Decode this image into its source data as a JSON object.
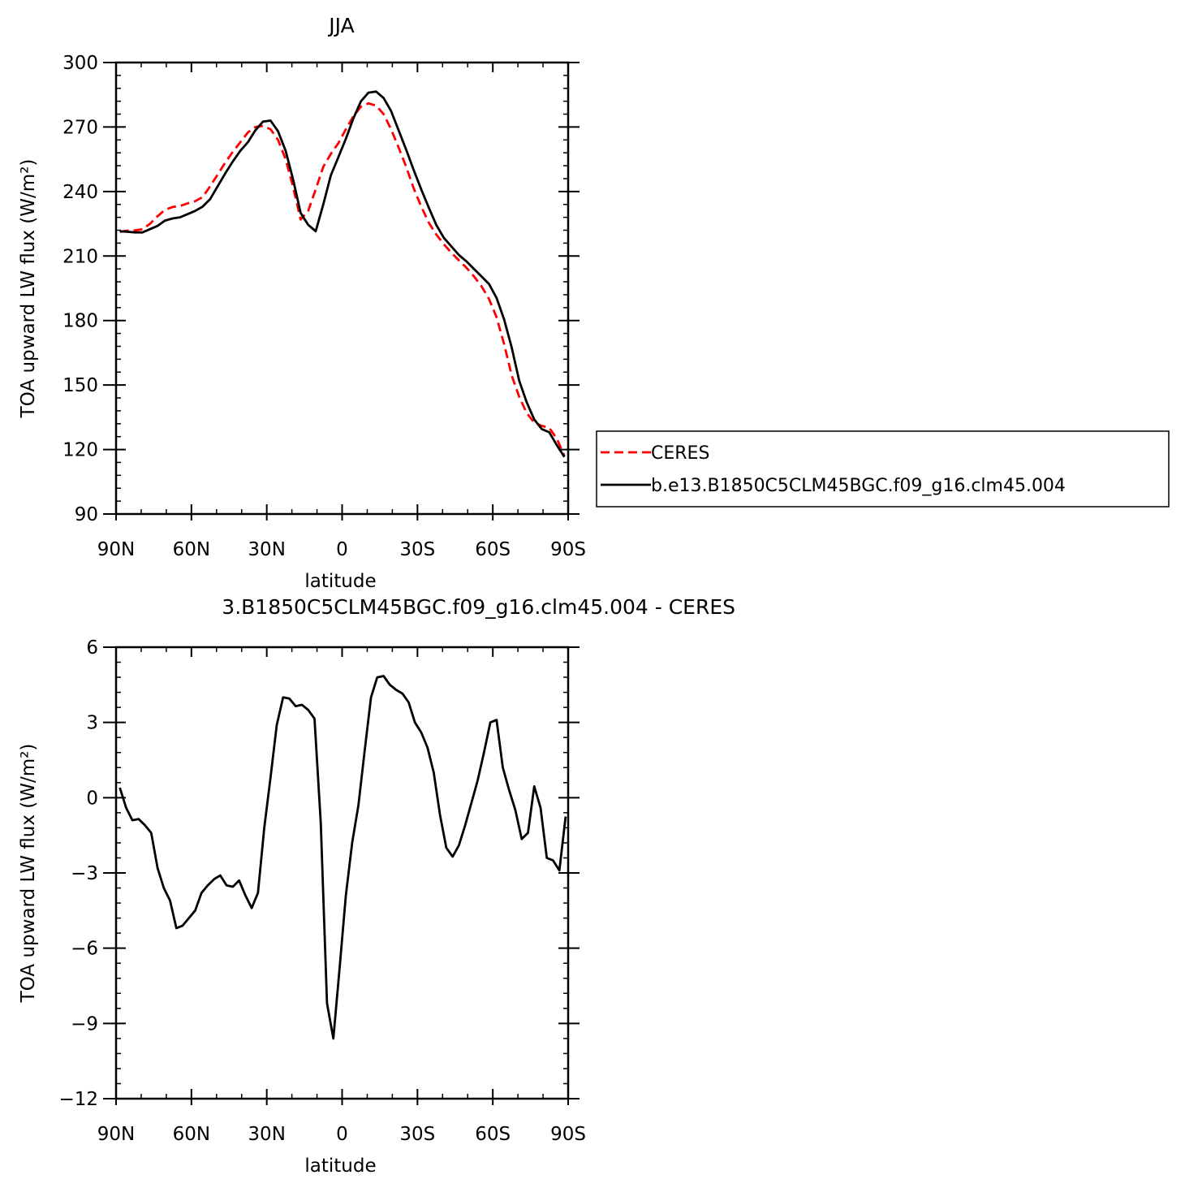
{
  "chart_data": [
    {
      "type": "line",
      "title": "JJA",
      "xlabel": "latitude",
      "ylabel": "TOA upward LW flux (W/m²)",
      "xlim": [
        90,
        -90
      ],
      "ylim": [
        90,
        300
      ],
      "x_ticks": [
        {
          "value": 90,
          "label": "90N"
        },
        {
          "value": 60,
          "label": "60N"
        },
        {
          "value": 30,
          "label": "30N"
        },
        {
          "value": 0,
          "label": "0"
        },
        {
          "value": -30,
          "label": "30S"
        },
        {
          "value": -60,
          "label": "60S"
        },
        {
          "value": -90,
          "label": "90S"
        }
      ],
      "y_ticks": [
        90,
        120,
        150,
        180,
        210,
        240,
        270,
        300
      ],
      "legend_position": "right",
      "series": [
        {
          "name": "CERES",
          "color": "#ff0000",
          "dash": "dashed",
          "x": [
            88.5,
            85.5,
            82.5,
            79.5,
            76.5,
            73.5,
            70.5,
            67.5,
            64.5,
            61.5,
            58.5,
            55.5,
            52.5,
            49.5,
            46.5,
            43.5,
            40.5,
            37.5,
            34.5,
            31.5,
            28.5,
            25.5,
            22.5,
            19.5,
            16.5,
            13.5,
            10.5,
            7.5,
            4.5,
            1.5,
            -1.5,
            -4.5,
            -7.5,
            -10.5,
            -13.5,
            -16.5,
            -19.5,
            -22.5,
            -25.5,
            -28.5,
            -31.5,
            -34.5,
            -37.5,
            -40.5,
            -43.5,
            -46.5,
            -49.5,
            -52.5,
            -55.5,
            -58.5,
            -61.5,
            -64.5,
            -67.5,
            -70.5,
            -73.5,
            -76.5,
            -79.5,
            -82.5,
            -85.5,
            -88.5
          ],
          "y": [
            221.3,
            221.8,
            221.9,
            222.5,
            225.0,
            228.5,
            231.5,
            232.8,
            233.3,
            234.5,
            235.5,
            237.5,
            242.5,
            248.0,
            253.5,
            258.5,
            263.0,
            267.5,
            270.0,
            270.5,
            269.0,
            264.0,
            255.0,
            242.0,
            227.0,
            231.0,
            241.0,
            251.5,
            257.5,
            262.5,
            269.0,
            275.0,
            279.5,
            281.0,
            280.0,
            276.0,
            269.0,
            260.5,
            251.5,
            241.5,
            233.0,
            225.5,
            220.0,
            215.5,
            211.5,
            208.0,
            204.5,
            200.5,
            196.0,
            190.0,
            181.5,
            169.0,
            154.5,
            144.5,
            137.0,
            132.5,
            131.0,
            130.0,
            125.0,
            117.0
          ]
        },
        {
          "name": "b.e13.B1850C5CLM45BGC.f09_g16.clm45.004",
          "color": "#000000",
          "dash": "solid",
          "x": [
            88.5,
            85.5,
            82.5,
            79.5,
            76.5,
            73.5,
            70.5,
            67.5,
            64.5,
            61.5,
            58.5,
            55.5,
            52.5,
            49.5,
            46.5,
            43.5,
            40.5,
            37.5,
            34.5,
            31.5,
            28.5,
            25.5,
            22.5,
            19.5,
            16.5,
            13.5,
            10.5,
            7.5,
            4.5,
            1.5,
            -1.5,
            -4.5,
            -7.5,
            -10.5,
            -13.5,
            -16.5,
            -19.5,
            -22.5,
            -25.5,
            -28.5,
            -31.5,
            -34.5,
            -37.5,
            -40.5,
            -43.5,
            -46.5,
            -49.5,
            -52.5,
            -55.5,
            -58.5,
            -61.5,
            -64.5,
            -67.5,
            -70.5,
            -73.5,
            -76.5,
            -79.5,
            -82.5,
            -85.5,
            -88.5
          ],
          "y": [
            221.5,
            221.3,
            221.0,
            221.0,
            222.5,
            224.0,
            226.5,
            227.5,
            228.0,
            229.5,
            231.0,
            233.0,
            236.5,
            242.5,
            248.5,
            254.0,
            259.0,
            263.0,
            268.5,
            272.5,
            273.0,
            268.0,
            259.0,
            245.5,
            230.0,
            224.5,
            221.5,
            234.0,
            247.5,
            256.0,
            264.5,
            274.0,
            282.0,
            286.0,
            286.5,
            283.5,
            277.5,
            268.5,
            259.5,
            250.0,
            241.0,
            232.5,
            224.5,
            218.5,
            214.5,
            210.5,
            207.5,
            204.0,
            200.5,
            197.0,
            190.5,
            180.5,
            167.5,
            152.0,
            142.0,
            134.0,
            129.5,
            128.0,
            122.0,
            116.5
          ]
        }
      ]
    },
    {
      "type": "line",
      "title": "3.B1850C5CLM45BGC.f09_g16.clm45.004 - CERES",
      "xlabel": "latitude",
      "ylabel": "TOA upward LW flux (W/m²)",
      "xlim": [
        90,
        -90
      ],
      "ylim": [
        -12,
        6
      ],
      "x_ticks": [
        {
          "value": 90,
          "label": "90N"
        },
        {
          "value": 60,
          "label": "60N"
        },
        {
          "value": 30,
          "label": "30N"
        },
        {
          "value": 0,
          "label": "0"
        },
        {
          "value": -30,
          "label": "30S"
        },
        {
          "value": -60,
          "label": "60S"
        },
        {
          "value": -90,
          "label": "90S"
        }
      ],
      "y_ticks": [
        -12,
        -9,
        -6,
        -3,
        0,
        3,
        6
      ],
      "series": [
        {
          "color": "#000000",
          "dash": "solid",
          "x": [
            88.5,
            86.0,
            83.5,
            81.0,
            78.5,
            76.0,
            73.5,
            71.0,
            68.5,
            66.0,
            63.5,
            61.0,
            58.5,
            56.0,
            53.5,
            51.0,
            48.5,
            46.0,
            43.5,
            41.0,
            38.5,
            36.0,
            33.5,
            31.0,
            28.5,
            26.0,
            23.5,
            21.0,
            18.5,
            16.0,
            13.5,
            11.0,
            8.5,
            6.0,
            3.5,
            1.0,
            -1.5,
            -4.0,
            -6.5,
            -9.0,
            -11.5,
            -14.0,
            -16.5,
            -19.0,
            -21.5,
            -24.0,
            -26.5,
            -29.0,
            -31.5,
            -34.0,
            -36.5,
            -39.0,
            -41.5,
            -44.0,
            -46.5,
            -49.0,
            -51.5,
            -54.0,
            -56.5,
            -59.0,
            -61.5,
            -64.0,
            -66.5,
            -69.0,
            -71.5,
            -74.0,
            -76.5,
            -79.0,
            -81.5,
            -84.0,
            -86.5,
            -89.0
          ],
          "y": [
            0.4,
            -0.4,
            -0.9,
            -0.85,
            -1.1,
            -1.4,
            -2.8,
            -3.6,
            -4.1,
            -5.2,
            -5.1,
            -4.8,
            -4.5,
            -3.8,
            -3.5,
            -3.25,
            -3.1,
            -3.5,
            -3.55,
            -3.3,
            -3.9,
            -4.4,
            -3.8,
            -1.2,
            0.8,
            2.9,
            4.0,
            3.95,
            3.65,
            3.7,
            3.5,
            3.15,
            -1.0,
            -8.2,
            -9.6,
            -6.8,
            -3.9,
            -1.8,
            -0.3,
            1.9,
            4.0,
            4.8,
            4.85,
            4.5,
            4.3,
            4.15,
            3.8,
            3.0,
            2.6,
            2.0,
            1.0,
            -0.7,
            -2.0,
            -2.35,
            -1.9,
            -1.1,
            -0.2,
            0.7,
            1.8,
            3.0,
            3.1,
            1.2,
            0.3,
            -0.5,
            -1.65,
            -1.4,
            0.45,
            -0.4,
            -2.4,
            -2.5,
            -2.9,
            -0.75
          ]
        }
      ]
    }
  ]
}
